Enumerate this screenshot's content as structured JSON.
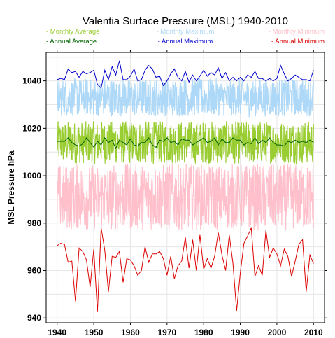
{
  "chart_data": {
    "type": "line",
    "title": "Valentia Surface Pressure (MSL) 1940-2010",
    "xlabel": "",
    "ylabel": "MSL Pressure hPa",
    "xlim": [
      1937,
      2013
    ],
    "ylim": [
      938,
      1052
    ],
    "x_ticks": [
      1940,
      1950,
      1960,
      1970,
      1980,
      1990,
      2000,
      2010
    ],
    "y_ticks": [
      940,
      960,
      980,
      1000,
      1020,
      1040
    ],
    "grid": true,
    "legend_position": "top",
    "x": [
      1940,
      1941,
      1942,
      1943,
      1944,
      1945,
      1946,
      1947,
      1948,
      1949,
      1950,
      1951,
      1952,
      1953,
      1954,
      1955,
      1956,
      1957,
      1958,
      1959,
      1960,
      1961,
      1962,
      1963,
      1964,
      1965,
      1966,
      1967,
      1968,
      1969,
      1970,
      1971,
      1972,
      1973,
      1974,
      1975,
      1976,
      1977,
      1978,
      1979,
      1980,
      1981,
      1982,
      1983,
      1984,
      1985,
      1986,
      1987,
      1988,
      1989,
      1990,
      1991,
      1992,
      1993,
      1994,
      1995,
      1996,
      1997,
      1998,
      1999,
      2000,
      2001,
      2002,
      2003,
      2004,
      2005,
      2006,
      2007,
      2008,
      2009,
      2010
    ],
    "series": [
      {
        "name": "Monthly Average",
        "color": "#9ACD32",
        "style": "monthly",
        "center": 1014,
        "spread": 9
      },
      {
        "name": "Monthly Maximum",
        "color": "#ADD8F7",
        "style": "monthly",
        "center": 1033,
        "spread": 8
      },
      {
        "name": "Monthly Minimum",
        "color": "#FFC0CB",
        "style": "monthly",
        "center": 991,
        "spread": 14
      },
      {
        "name": "Annual Average",
        "color": "#006400",
        "style": "annual",
        "values": [
          1014.5,
          1014.5,
          1014.5,
          1016,
          1014,
          1013,
          1012.5,
          1013.5,
          1016,
          1014,
          1012,
          1014.5,
          1013,
          1016,
          1014,
          1015,
          1011.5,
          1015,
          1014,
          1013,
          1015.5,
          1013,
          1012.5,
          1014,
          1014,
          1016,
          1013,
          1012,
          1015,
          1014.5,
          1016,
          1014,
          1014.5,
          1013,
          1015.5,
          1015,
          1015,
          1013,
          1014,
          1015,
          1016,
          1014,
          1014.5,
          1016,
          1013,
          1015.5,
          1014,
          1014,
          1016,
          1015,
          1015,
          1013,
          1014,
          1013.5,
          1016,
          1013.5,
          1015,
          1014,
          1016,
          1014,
          1013,
          1013,
          1012.5,
          1014.5,
          1014,
          1015,
          1014,
          1014.5,
          1014,
          1015,
          1014
        ]
      },
      {
        "name": "Annual Maximum",
        "color": "#0000CD",
        "style": "annual",
        "values": [
          1040.5,
          1041,
          1040.5,
          1045,
          1043.5,
          1044,
          1041.5,
          1044,
          1043,
          1043.5,
          1044.5,
          1038.5,
          1037,
          1044.5,
          1040.5,
          1046,
          1042.5,
          1048.5,
          1040.5,
          1040.5,
          1042,
          1045,
          1040,
          1040.5,
          1044.5,
          1046.5,
          1045,
          1041.5,
          1042,
          1038,
          1040,
          1043,
          1045,
          1041.5,
          1040,
          1044,
          1039.5,
          1042.5,
          1040,
          1042,
          1044.5,
          1042,
          1043.5,
          1042.5,
          1045.5,
          1041,
          1043.5,
          1040,
          1041.5,
          1040,
          1041.5,
          1040,
          1042.5,
          1041.5,
          1044,
          1041,
          1041,
          1040,
          1041,
          1040,
          1041,
          1046.5,
          1043,
          1040,
          1041,
          1042.5,
          1041.5,
          1040.5,
          1040.5,
          1040,
          1044.5
        ]
      },
      {
        "name": "Annual Minimum",
        "color": "#DD0000",
        "style": "annual",
        "values": [
          970.5,
          971.5,
          971,
          963.5,
          964,
          947,
          969.5,
          968,
          964.5,
          953,
          969,
          942.5,
          978,
          968.5,
          951,
          966,
          965.5,
          968,
          955,
          965,
          964.5,
          962,
          958,
          960,
          970,
          963.5,
          967,
          967,
          968,
          965,
          958,
          966,
          956.5,
          962,
          964,
          974,
          961,
          973,
          960,
          975,
          960.5,
          965,
          961,
          966,
          976,
          966.5,
          960,
          975,
          963,
          943,
          959,
          971.5,
          974.5,
          978,
          957.5,
          962,
          958,
          977,
          965.5,
          969.5,
          967,
          962,
          969,
          966,
          957.5,
          964,
          971,
          973,
          951,
          966.5,
          963
        ]
      }
    ]
  }
}
